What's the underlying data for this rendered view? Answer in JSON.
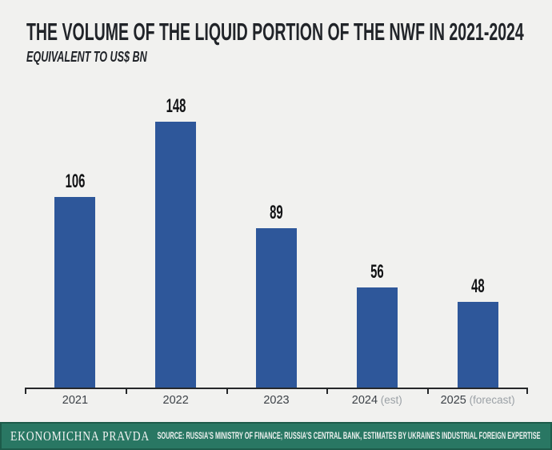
{
  "title": "THE VOLUME OF THE LIQUID PORTION OF THE NWF IN 2021-2024",
  "subtitle": "EQUIVALENT TO US$ BN",
  "chart_data": {
    "type": "bar",
    "categories": [
      "2021",
      "2022",
      "2023",
      "2024 (est)",
      "2025 (forecast)"
    ],
    "values": [
      106,
      148,
      89,
      56,
      48
    ],
    "title": "THE VOLUME OF THE LIQUID PORTION OF THE NWF IN 2021-2024",
    "xlabel": "",
    "ylabel": "EQUIVALENT TO US$ BN",
    "ylim": [
      0,
      160
    ],
    "grid": false,
    "legend": false,
    "bar_color": "#2e579a",
    "value_labels": [
      106,
      148,
      89,
      56,
      48
    ],
    "category_qualifiers": [
      "",
      "",
      "",
      "(est)",
      "(forecast)"
    ]
  },
  "footer": {
    "brand": "EKONOMICHNA PRAVDA",
    "source": "SOURCE: RUSSIA'S MINISTRY OF FINANCE; RUSSIA'S CENTRAL BANK, ESTIMATES BY UKRAINE'S INDUSTRIAL FOREIGN EXPERTISE"
  },
  "colors": {
    "background": "#f1f1ef",
    "bar": "#2e579a",
    "footer_background": "#297763",
    "footer_border": "#1d5b4a",
    "axis": "#26282a",
    "text": "#212429",
    "qualifier": "#9ba1a6"
  }
}
